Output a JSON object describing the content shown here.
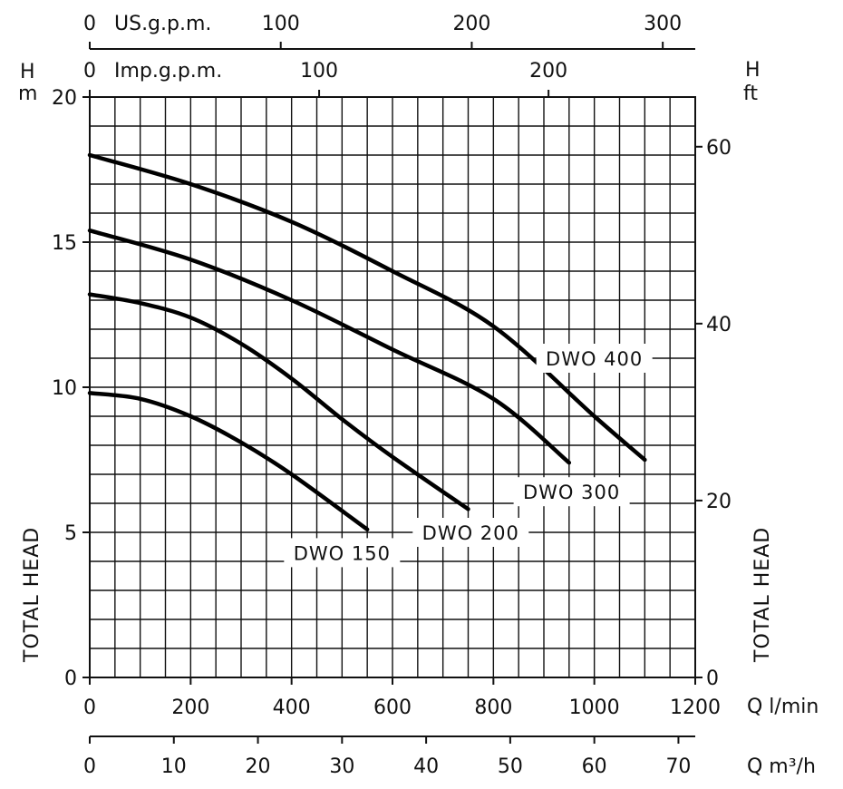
{
  "chart_data": {
    "type": "line",
    "left_axis": {
      "label_top": "H",
      "unit": "m",
      "title": "TOTAL HEAD",
      "ticks": [
        "0",
        "5",
        "10",
        "15",
        "20"
      ],
      "range": [
        0,
        20
      ]
    },
    "right_axis": {
      "label_top": "H",
      "unit": "ft",
      "title": "TOTAL HEAD",
      "ticks": [
        "0",
        "20",
        "40",
        "60"
      ],
      "tick_values": [
        0,
        20,
        40,
        60
      ]
    },
    "bottom_axis_lmin": {
      "unit": "Q l/min",
      "ticks": [
        "0",
        "200",
        "400",
        "600",
        "800",
        "1000",
        "1200"
      ],
      "tick_values": [
        0,
        200,
        400,
        600,
        800,
        1000,
        1200
      ],
      "range": [
        0,
        1200
      ]
    },
    "bottom_axis_m3h": {
      "unit": "Q m³/h",
      "ticks": [
        "0",
        "10",
        "20",
        "30",
        "40",
        "50",
        "60",
        "70"
      ],
      "tick_values": [
        0,
        10,
        20,
        30,
        40,
        50,
        60,
        70
      ]
    },
    "top_axis_usgpm": {
      "unit": "US.g.p.m.",
      "ticks": [
        "0",
        "100",
        "200",
        "300"
      ],
      "tick_values": [
        0,
        100,
        200,
        300
      ]
    },
    "top_axis_impgpm": {
      "unit": "Imp.g.p.m.",
      "ticks": [
        "0",
        "100",
        "200"
      ],
      "tick_values": [
        0,
        100,
        200
      ]
    },
    "grid": true,
    "series": [
      {
        "name": "DWO 400",
        "x": [
          0,
          200,
          400,
          600,
          800,
          1000,
          1100
        ],
        "y": [
          18.0,
          17.0,
          15.7,
          14.0,
          12.1,
          9.0,
          7.5
        ],
        "label_at": [
          1000,
          11.0
        ]
      },
      {
        "name": "DWO 300",
        "x": [
          0,
          200,
          400,
          600,
          800,
          950
        ],
        "y": [
          15.4,
          14.4,
          13.0,
          11.3,
          9.6,
          7.4
        ],
        "label_at": [
          955,
          6.4
        ]
      },
      {
        "name": "DWO 200",
        "x": [
          0,
          100,
          200,
          300,
          400,
          500,
          600,
          750
        ],
        "y": [
          13.2,
          12.9,
          12.4,
          11.5,
          10.3,
          8.9,
          7.6,
          5.8
        ],
        "label_at": [
          755,
          5.0
        ]
      },
      {
        "name": "DWO 150",
        "x": [
          0,
          100,
          200,
          300,
          400,
          550
        ],
        "y": [
          9.8,
          9.6,
          9.0,
          8.1,
          7.0,
          5.1
        ],
        "label_at": [
          500,
          4.3
        ]
      }
    ]
  }
}
